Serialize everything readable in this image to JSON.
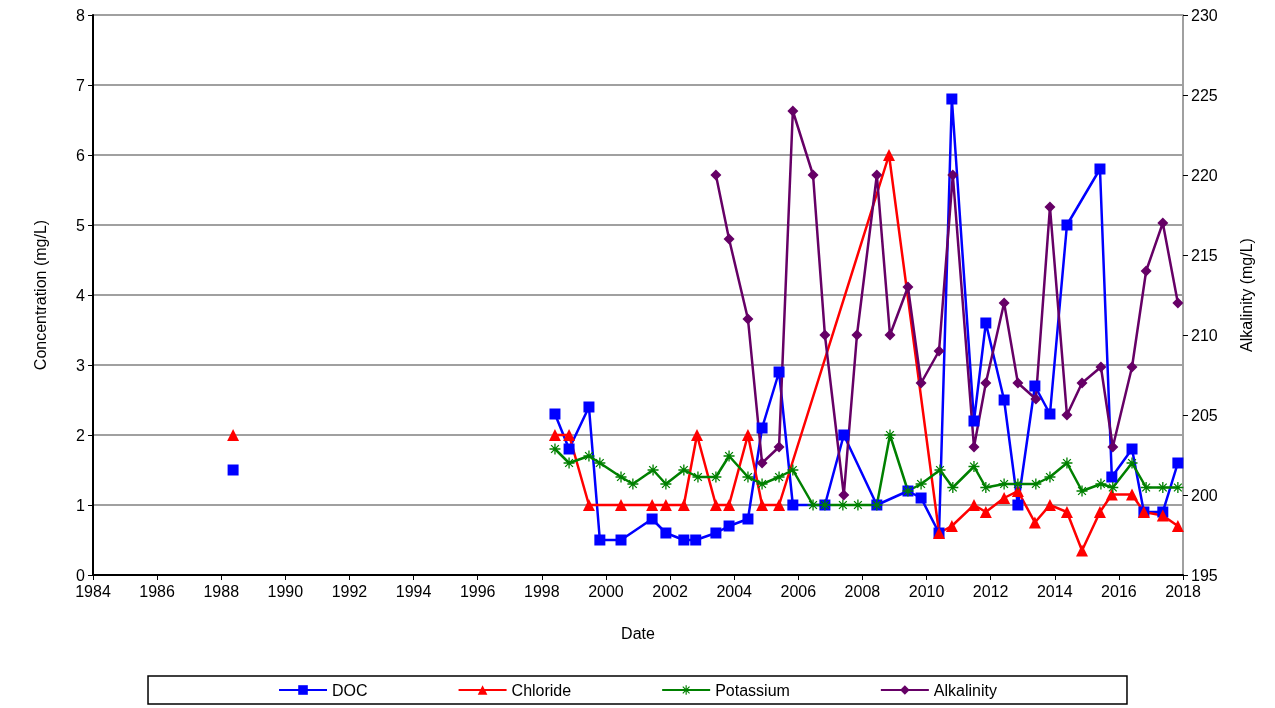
{
  "chart_data": {
    "type": "line",
    "xlabel": "Date",
    "ylabel": "Concentration (mg/L)",
    "y2label": "Alkalinity (mg/L)",
    "xlim": [
      1984,
      2018
    ],
    "xticks": [
      1984,
      1986,
      1988,
      1990,
      1992,
      1994,
      1996,
      1998,
      2000,
      2002,
      2004,
      2006,
      2008,
      2010,
      2012,
      2014,
      2016,
      2018
    ],
    "ylim": [
      0,
      8
    ],
    "yticks": [
      0,
      1,
      2,
      3,
      4,
      5,
      6,
      7,
      8
    ],
    "y2lim": [
      195,
      230
    ],
    "y2ticks": [
      195,
      200,
      205,
      210,
      215,
      220,
      225,
      230
    ],
    "grid": "y",
    "legend": "bottom",
    "line_style": "solid",
    "series": [
      {
        "name": "DOC",
        "color": "#0000ff",
        "marker": "square",
        "x": [
          1988.37,
          1993,
          1998.41,
          1998.85,
          1999.47,
          1999.81,
          2000.47,
          2001.44,
          2001.87,
          2002.43,
          2002.8,
          2003.43,
          2003.84,
          2004.43,
          2004.87,
          2005.4,
          2005.83,
          2006.83,
          2007.42,
          2008.45,
          2009.42,
          2009.83,
          2010.39,
          2010.79,
          2011.48,
          2011.85,
          2012.42,
          2012.85,
          2013.38,
          2013.85,
          2014.38,
          2015.41,
          2015.78,
          2016.41,
          2016.78,
          2017.37,
          2017.84
        ],
        "values": [
          1.5,
          null,
          2.3,
          1.8,
          2.4,
          0.5,
          0.5,
          0.8,
          0.6,
          0.5,
          0.5,
          0.6,
          0.7,
          0.8,
          2.1,
          2.9,
          1.0,
          1.0,
          2.0,
          1.0,
          1.2,
          1.1,
          0.6,
          6.8,
          2.2,
          3.6,
          2.5,
          1.0,
          2.7,
          2.3,
          5.0,
          5.8,
          1.4,
          1.8,
          0.9,
          0.9,
          1.6
        ]
      },
      {
        "name": "Chloride",
        "color": "#ff0000",
        "marker": "triangle",
        "x": [
          1988.37,
          1993,
          1998.41,
          1998.85,
          1999.47,
          2000.47,
          2001.44,
          2001.87,
          2002.43,
          2002.84,
          2003.43,
          2003.84,
          2004.43,
          2004.87,
          2005.4,
          2008.83,
          2010.39,
          2010.79,
          2011.48,
          2011.85,
          2012.42,
          2012.85,
          2013.38,
          2013.85,
          2014.38,
          2014.85,
          2015.41,
          2015.78,
          2016.41,
          2016.78,
          2017.37,
          2017.84
        ],
        "values": [
          2.0,
          null,
          2.0,
          2.0,
          1.0,
          1.0,
          1.0,
          1.0,
          1.0,
          2.0,
          1.0,
          1.0,
          2.0,
          1.0,
          1.0,
          6.0,
          0.6,
          0.7,
          1.0,
          0.9,
          1.1,
          1.2,
          0.75,
          1.0,
          0.9,
          0.35,
          0.9,
          1.15,
          1.15,
          0.9,
          0.85,
          0.7
        ]
      },
      {
        "name": "Potassium",
        "color": "#008000",
        "marker": "cross",
        "x": [
          1998.41,
          1998.85,
          1999.47,
          1999.81,
          2000.47,
          2000.84,
          2001.47,
          2001.87,
          2002.43,
          2002.87,
          2003.43,
          2003.84,
          2004.43,
          2004.87,
          2005.4,
          2005.83,
          2006.46,
          2006.83,
          2007.39,
          2007.86,
          2008.45,
          2008.86,
          2009.42,
          2009.83,
          2010.42,
          2010.82,
          2011.48,
          2011.85,
          2012.42,
          2012.85,
          2013.41,
          2013.85,
          2014.38,
          2014.85,
          2015.44,
          2015.81,
          2016.41,
          2016.85,
          2017.37,
          2017.84
        ],
        "values": [
          1.8,
          1.6,
          1.7,
          1.6,
          1.4,
          1.3,
          1.5,
          1.3,
          1.5,
          1.4,
          1.4,
          1.7,
          1.4,
          1.3,
          1.4,
          1.5,
          1.0,
          1.0,
          1.0,
          1.0,
          1.0,
          2.0,
          1.2,
          1.3,
          1.5,
          1.25,
          1.55,
          1.25,
          1.3,
          1.3,
          1.3,
          1.4,
          1.6,
          1.2,
          1.3,
          1.25,
          1.6,
          1.25,
          1.25,
          1.25
        ]
      },
      {
        "name": "Alkalinity",
        "color": "#660066",
        "marker": "diamond",
        "axis": "y2",
        "x": [
          2003.43,
          2003.84,
          2004.43,
          2004.87,
          2005.4,
          2005.83,
          2006.46,
          2006.83,
          2007.42,
          2007.83,
          2008.45,
          2008.86,
          2009.42,
          2009.83,
          2010.39,
          2010.82,
          2011.48,
          2011.85,
          2012.42,
          2012.85,
          2013.41,
          2013.85,
          2014.38,
          2014.85,
          2015.44,
          2015.81,
          2016.41,
          2016.85,
          2017.37,
          2017.84
        ],
        "values": [
          220,
          216,
          211,
          202,
          203,
          224,
          220,
          210,
          200,
          210,
          220,
          210,
          213,
          207,
          209,
          220,
          203,
          207,
          212,
          207,
          206,
          218,
          205,
          207,
          208,
          203,
          208,
          214,
          217,
          212
        ]
      }
    ]
  }
}
